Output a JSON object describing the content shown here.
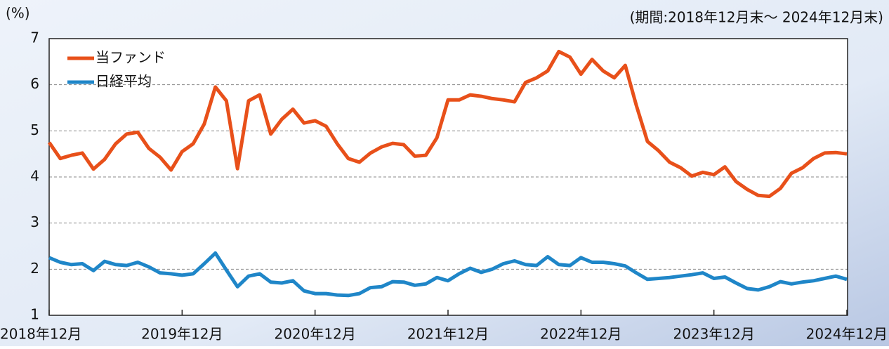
{
  "chart_data": {
    "type": "line",
    "y_label": "(%)",
    "annotation": "(期間:2018年12月末～ 2024年12月末)",
    "categories": [
      "2018年12月",
      null,
      null,
      null,
      null,
      null,
      null,
      null,
      null,
      null,
      null,
      null,
      "2019年12月",
      null,
      null,
      null,
      null,
      null,
      null,
      null,
      null,
      null,
      null,
      null,
      "2020年12月",
      null,
      null,
      null,
      null,
      null,
      null,
      null,
      null,
      null,
      null,
      null,
      "2021年12月",
      null,
      null,
      null,
      null,
      null,
      null,
      null,
      null,
      null,
      null,
      null,
      "2022年12月",
      null,
      null,
      null,
      null,
      null,
      null,
      null,
      null,
      null,
      null,
      null,
      "2023年12月",
      null,
      null,
      null,
      null,
      null,
      null,
      null,
      null,
      null,
      null,
      null,
      "2024年12月"
    ],
    "series": [
      {
        "name": "当ファンド",
        "color": "#e8501a",
        "values": [
          4.75,
          4.4,
          4.47,
          4.52,
          4.17,
          4.38,
          4.72,
          4.93,
          4.97,
          4.62,
          4.43,
          4.15,
          4.55,
          4.72,
          5.15,
          5.95,
          5.65,
          4.18,
          5.65,
          5.78,
          4.93,
          5.25,
          5.47,
          5.17,
          5.22,
          5.1,
          4.72,
          4.4,
          4.32,
          4.52,
          4.65,
          4.73,
          4.7,
          4.45,
          4.47,
          4.85,
          5.67,
          5.67,
          5.78,
          5.75,
          5.7,
          5.67,
          5.63,
          6.05,
          6.15,
          6.3,
          6.72,
          6.6,
          6.23,
          6.55,
          6.3,
          6.15,
          6.42,
          5.55,
          4.77,
          4.57,
          4.32,
          4.2,
          4.02,
          4.1,
          4.05,
          4.22,
          3.9,
          3.73,
          3.6,
          3.58,
          3.75,
          4.08,
          4.2,
          4.4,
          4.52,
          4.53,
          4.5
        ]
      },
      {
        "name": "日経平均",
        "color": "#1f86c8",
        "values": [
          2.25,
          2.15,
          2.1,
          2.12,
          1.97,
          2.17,
          2.1,
          2.08,
          2.15,
          2.05,
          1.92,
          1.9,
          1.87,
          1.9,
          2.12,
          2.35,
          1.98,
          1.62,
          1.85,
          1.9,
          1.72,
          1.7,
          1.75,
          1.53,
          1.47,
          1.47,
          1.44,
          1.43,
          1.47,
          1.6,
          1.62,
          1.73,
          1.72,
          1.65,
          1.68,
          1.82,
          1.75,
          1.9,
          2.02,
          1.93,
          2.0,
          2.12,
          2.18,
          2.1,
          2.08,
          2.27,
          2.1,
          2.08,
          2.25,
          2.15,
          2.15,
          2.12,
          2.07,
          1.92,
          1.78,
          1.8,
          1.82,
          1.85,
          1.88,
          1.92,
          1.8,
          1.83,
          1.7,
          1.58,
          1.55,
          1.62,
          1.73,
          1.68,
          1.72,
          1.75,
          1.8,
          1.85,
          1.78
        ]
      }
    ],
    "ylim": [
      1,
      7
    ],
    "yticks": [
      1,
      2,
      3,
      4,
      5,
      6,
      7
    ],
    "grid": true,
    "legend": "upper left"
  }
}
